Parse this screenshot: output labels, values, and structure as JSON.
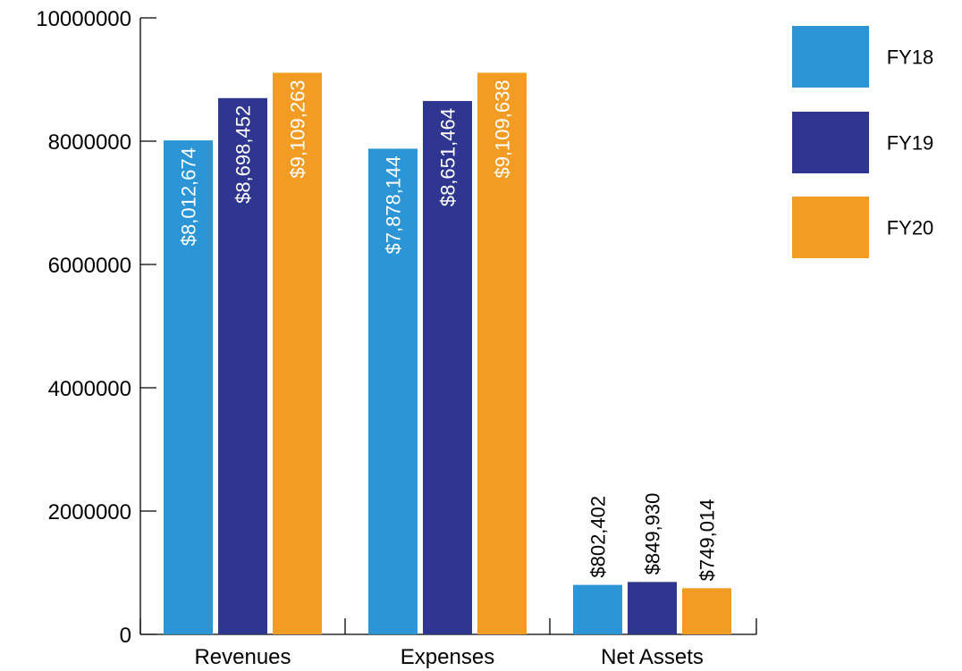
{
  "chart_data": {
    "type": "bar",
    "categories": [
      "Revenues",
      "Expenses",
      "Net Assets"
    ],
    "series": [
      {
        "name": "FY18",
        "color": "#2B95D6",
        "values": [
          8012674,
          7878144,
          802402
        ],
        "labels": [
          "$8,012,674",
          "$7,878,144",
          "$802,402"
        ]
      },
      {
        "name": "FY19",
        "color": "#2E3690",
        "values": [
          8698452,
          8651464,
          849930
        ],
        "labels": [
          "$8,698,452",
          "$8,651,464",
          "$849,930"
        ]
      },
      {
        "name": "FY20",
        "color": "#F39C24",
        "values": [
          9109263,
          9109638,
          749014
        ],
        "labels": [
          "$9,109,263",
          "$9,109,638",
          "$749,014"
        ]
      }
    ],
    "yticks": [
      0,
      2000000,
      4000000,
      6000000,
      8000000,
      10000000
    ],
    "ytick_labels": [
      "0",
      "2000000",
      "4000000",
      "6000000",
      "8000000",
      "10000000"
    ],
    "ylim": [
      0,
      10000000
    ],
    "title": "",
    "xlabel": "",
    "ylabel": "",
    "grid": false,
    "legend_position": "top-right",
    "data_labels": "rotated vertical; inside bar for large values, above bar for small values"
  }
}
